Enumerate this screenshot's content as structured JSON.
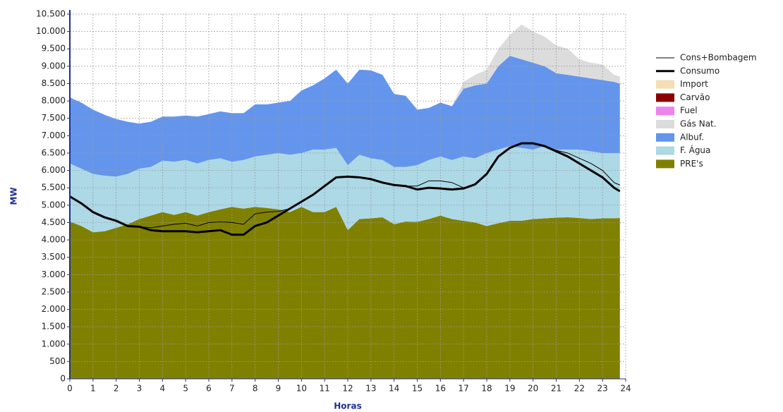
{
  "chart_data": {
    "type": "area",
    "xlabel": "Horas",
    "ylabel": "MW",
    "x": [
      0,
      0.5,
      1,
      1.5,
      2,
      2.5,
      3,
      3.5,
      4,
      4.5,
      5,
      5.5,
      6,
      6.5,
      7,
      7.5,
      8,
      8.5,
      9,
      9.5,
      10,
      10.5,
      11,
      11.5,
      12,
      12.5,
      13,
      13.5,
      14,
      14.5,
      15,
      15.5,
      16,
      16.5,
      17,
      17.5,
      18,
      18.5,
      19,
      19.5,
      20,
      20.5,
      21,
      21.5,
      22,
      22.5,
      23,
      23.5,
      23.75
    ],
    "xlim": [
      0,
      24
    ],
    "xticks": [
      0,
      1,
      2,
      3,
      4,
      5,
      6,
      7,
      8,
      9,
      10,
      11,
      12,
      13,
      14,
      15,
      16,
      17,
      18,
      19,
      20,
      21,
      22,
      23,
      24
    ],
    "ylim": [
      0,
      10500
    ],
    "yticks": [
      0,
      500,
      {
        "value": 1000,
        "label": "1.000"
      },
      {
        "value": 1500,
        "label": "1.500"
      },
      {
        "value": 2000,
        "label": "2.000"
      },
      {
        "value": 2500,
        "label": "2.500"
      },
      {
        "value": 3000,
        "label": "3.000"
      },
      {
        "value": 3500,
        "label": "3.500"
      },
      {
        "value": 4000,
        "label": "4.000"
      },
      {
        "value": 4500,
        "label": "4.500"
      },
      {
        "value": 5000,
        "label": "5.000"
      },
      {
        "value": 5500,
        "label": "5.500"
      },
      {
        "value": 6000,
        "label": "6.000"
      },
      {
        "value": 6500,
        "label": "6.500"
      },
      {
        "value": 7000,
        "label": "7.000"
      },
      {
        "value": 7500,
        "label": "7.500"
      },
      {
        "value": 8000,
        "label": "8.000"
      },
      {
        "value": 8500,
        "label": "8.500"
      },
      {
        "value": 9000,
        "label": "9.000"
      },
      {
        "value": 9500,
        "label": "9.500"
      },
      {
        "value": 10000,
        "label": "10.000"
      },
      {
        "value": 10500,
        "label": "10.500"
      }
    ],
    "grid": true,
    "legend": "right",
    "stacked": true,
    "series": [
      {
        "name": "Cons+Bombagem",
        "kind": "line",
        "line_width": 1,
        "color": "#000000",
        "values": [
          5250,
          5050,
          4800,
          4650,
          4550,
          4400,
          4380,
          4350,
          4400,
          4450,
          4480,
          4400,
          4500,
          4520,
          4500,
          4450,
          4750,
          4800,
          4820,
          4900,
          5100,
          5300,
          5550,
          5800,
          5820,
          5800,
          5750,
          5650,
          5580,
          5550,
          5550,
          5700,
          5700,
          5650,
          5500,
          5600,
          5900,
          6400,
          6650,
          6780,
          6780,
          6700,
          6580,
          6500,
          6350,
          6200,
          6000,
          5650,
          5580
        ]
      },
      {
        "name": "Consumo",
        "kind": "line",
        "line_width": 3,
        "color": "#000000",
        "values": [
          5250,
          5050,
          4800,
          4650,
          4550,
          4400,
          4380,
          4280,
          4250,
          4250,
          4250,
          4220,
          4250,
          4280,
          4150,
          4150,
          4400,
          4500,
          4700,
          4900,
          5100,
          5300,
          5550,
          5800,
          5820,
          5800,
          5750,
          5650,
          5580,
          5550,
          5450,
          5500,
          5480,
          5450,
          5480,
          5600,
          5900,
          6400,
          6650,
          6780,
          6780,
          6700,
          6550,
          6400,
          6200,
          6000,
          5800,
          5500,
          5400
        ]
      },
      {
        "name": "Import",
        "kind": "area",
        "color": "#f5deb3",
        "values": [
          0,
          0,
          0,
          0,
          0,
          0,
          0,
          0,
          0,
          0,
          0,
          0,
          0,
          0,
          0,
          0,
          0,
          0,
          0,
          0,
          0,
          0,
          0,
          0,
          0,
          0,
          0,
          0,
          0,
          0,
          0,
          0,
          0,
          0,
          0,
          0,
          0,
          0,
          0,
          0,
          0,
          0,
          0,
          0,
          0,
          0,
          0,
          0,
          0
        ]
      },
      {
        "name": "Carvão",
        "kind": "area",
        "color": "#8b0000",
        "values": [
          0,
          0,
          0,
          0,
          0,
          0,
          0,
          0,
          0,
          0,
          0,
          0,
          0,
          0,
          0,
          0,
          0,
          0,
          0,
          0,
          0,
          0,
          0,
          0,
          0,
          0,
          0,
          0,
          0,
          0,
          0,
          0,
          0,
          0,
          0,
          0,
          0,
          0,
          0,
          0,
          0,
          0,
          0,
          0,
          0,
          0,
          0,
          0,
          0
        ]
      },
      {
        "name": "Fuel",
        "kind": "area",
        "color": "#ee82ee",
        "values": [
          0,
          0,
          0,
          0,
          0,
          0,
          0,
          0,
          0,
          0,
          0,
          0,
          0,
          0,
          0,
          0,
          0,
          0,
          0,
          0,
          0,
          0,
          0,
          0,
          0,
          0,
          0,
          0,
          0,
          0,
          0,
          0,
          0,
          0,
          0,
          0,
          0,
          0,
          0,
          0,
          0,
          0,
          0,
          0,
          0,
          0,
          0,
          0,
          0
        ]
      },
      {
        "name": "Gás Nat.",
        "kind": "area",
        "color": "#dcdcdc",
        "values": [
          0,
          0,
          0,
          0,
          0,
          0,
          0,
          0,
          0,
          0,
          0,
          0,
          0,
          0,
          0,
          0,
          0,
          0,
          0,
          0,
          0,
          0,
          0,
          0,
          0,
          0,
          0,
          0,
          0,
          0,
          0,
          0,
          0,
          0,
          200,
          300,
          400,
          500,
          600,
          1000,
          900,
          850,
          800,
          750,
          500,
          450,
          450,
          200,
          200
        ]
      },
      {
        "name": "Albuf.",
        "kind": "area",
        "color": "#6495ed",
        "values": [
          1900,
          1900,
          1850,
          1750,
          1660,
          1500,
          1300,
          1300,
          1270,
          1300,
          1280,
          1350,
          1320,
          1350,
          1400,
          1350,
          1500,
          1450,
          1450,
          1550,
          1800,
          1850,
          2050,
          2250,
          2350,
          2450,
          2530,
          2450,
          2100,
          2050,
          1600,
          1500,
          1550,
          1550,
          1950,
          2100,
          2000,
          2400,
          2600,
          2550,
          2500,
          2300,
          2200,
          2150,
          2100,
          2100,
          2100,
          2050,
          2000
        ]
      },
      {
        "name": "F. Água",
        "kind": "area",
        "color": "#add8e6",
        "values": [
          1670,
          1650,
          1680,
          1600,
          1470,
          1450,
          1450,
          1400,
          1480,
          1530,
          1500,
          1500,
          1500,
          1470,
          1300,
          1400,
          1450,
          1530,
          1620,
          1650,
          1550,
          1800,
          1800,
          1700,
          1870,
          1850,
          1730,
          1650,
          1650,
          1570,
          1630,
          1700,
          1700,
          1700,
          1850,
          1850,
          2100,
          2120,
          2150,
          2100,
          2000,
          2080,
          1960,
          1950,
          1970,
          1950,
          1880,
          1880,
          1870
        ]
      },
      {
        "name": "PRE's",
        "kind": "area",
        "color": "#808000",
        "values": [
          4530,
          4400,
          4220,
          4250,
          4350,
          4450,
          4600,
          4700,
          4800,
          4720,
          4800,
          4700,
          4800,
          4880,
          4950,
          4900,
          4950,
          4920,
          4880,
          4800,
          4950,
          4800,
          4800,
          4950,
          4280,
          4600,
          4620,
          4650,
          4450,
          4530,
          4520,
          4600,
          4700,
          4600,
          4550,
          4500,
          4400,
          4480,
          4550,
          4550,
          4600,
          4620,
          4640,
          4650,
          4630,
          4600,
          4620,
          4620,
          4630
        ]
      }
    ]
  }
}
